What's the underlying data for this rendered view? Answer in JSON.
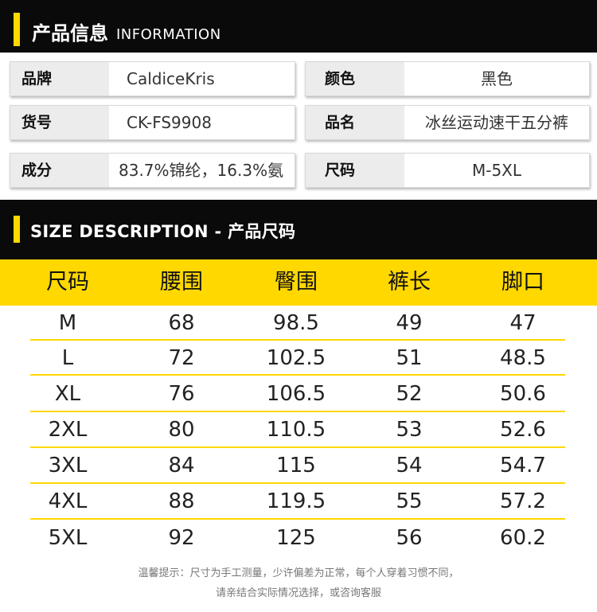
{
  "info_header": {
    "title_cn": "产品信息",
    "title_en": "INFORMATION"
  },
  "info": {
    "brand_label": "品牌",
    "brand_value": "CaldiceKris",
    "color_label": "颜色",
    "color_value": "黑色",
    "sku_label": "货号",
    "sku_value": "CK-FS9908",
    "name_label": "品名",
    "name_value": "冰丝运动速干五分裤",
    "material_label": "成分",
    "material_value": "83.7%锦纶，16.3%氨",
    "size_label": "尺码",
    "size_value": "M-5XL"
  },
  "size_header": {
    "title": "SIZE DESCRIPTION - 产品尺码"
  },
  "size_table": {
    "columns": [
      "尺码",
      "腰围",
      "臀围",
      "裤长",
      "脚口"
    ],
    "rows": [
      [
        "M",
        "68",
        "98.5",
        "49",
        "47"
      ],
      [
        "L",
        "72",
        "102.5",
        "51",
        "48.5"
      ],
      [
        "XL",
        "76",
        "106.5",
        "52",
        "50.6"
      ],
      [
        "2XL",
        "80",
        "110.5",
        "53",
        "52.6"
      ],
      [
        "3XL",
        "84",
        "115",
        "54",
        "54.7"
      ],
      [
        "4XL",
        "88",
        "119.5",
        "55",
        "57.2"
      ],
      [
        "5XL",
        "92",
        "125",
        "56",
        "60.2"
      ]
    ]
  },
  "note": {
    "line1": "温馨提示：尺寸为手工测量，少许偏差为正常，每个人穿着习惯不同，",
    "line2": "请亲结合实际情况选择，或咨询客服"
  },
  "colors": {
    "banner": "#0a0a0a",
    "accent": "#ffd800",
    "label_bg": "#ececec"
  }
}
